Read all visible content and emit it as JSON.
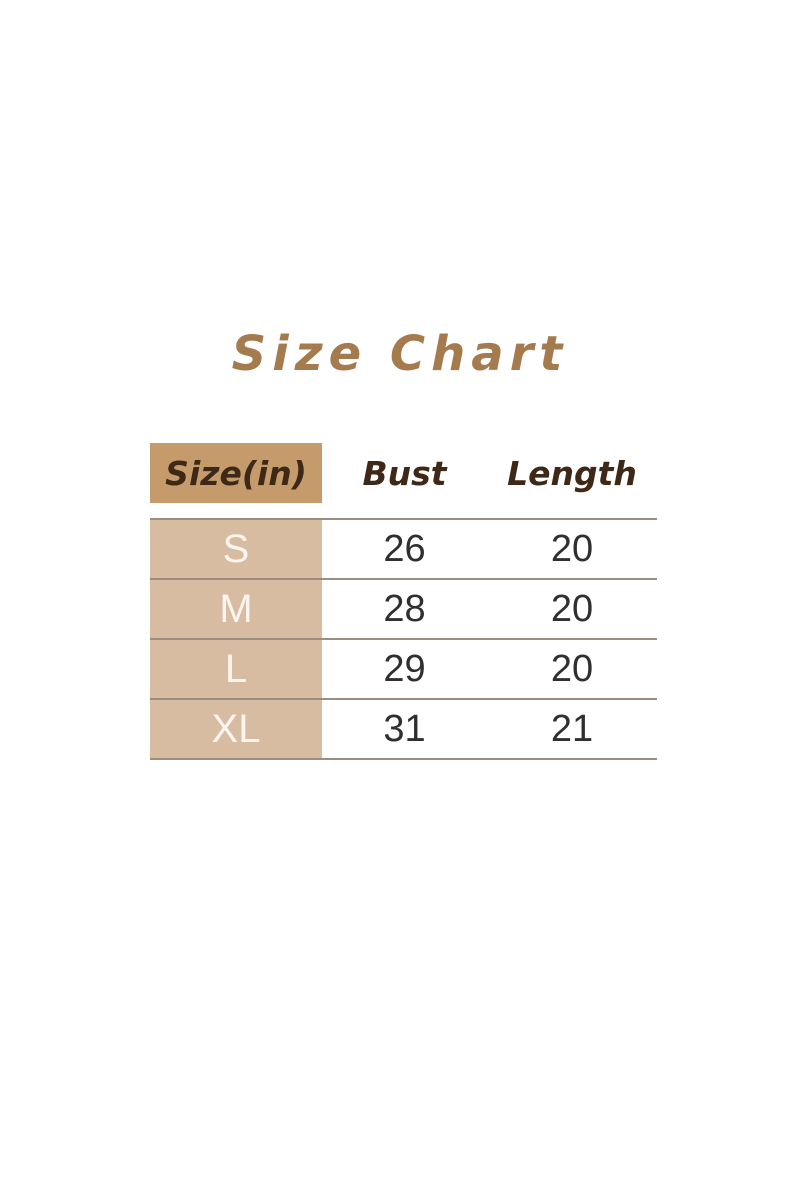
{
  "title": "Size Chart",
  "table": {
    "columns": [
      "Size(in)",
      "Bust",
      "Length"
    ],
    "rows": [
      {
        "size": "S",
        "bust": "26",
        "length": "20"
      },
      {
        "size": "M",
        "bust": "28",
        "length": "20"
      },
      {
        "size": "L",
        "bust": "29",
        "length": "20"
      },
      {
        "size": "XL",
        "bust": "31",
        "length": "21"
      }
    ]
  },
  "chart_data": {
    "type": "table",
    "title": "Size Chart",
    "unit": "inches",
    "columns": [
      "Size(in)",
      "Bust",
      "Length"
    ],
    "rows": [
      [
        "S",
        26,
        20
      ],
      [
        "M",
        28,
        20
      ],
      [
        "L",
        29,
        20
      ],
      [
        "XL",
        31,
        21
      ]
    ]
  },
  "colors": {
    "background": "#ffffff",
    "title_brown": "#a57b4e",
    "header_cell_bg": "#c59b6c",
    "header_text": "#3e2817",
    "size_column_bg": "#d8bca2",
    "size_text": "#faf5ee",
    "value_text": "#2f2f2f",
    "row_line": "#9b8d7f"
  }
}
